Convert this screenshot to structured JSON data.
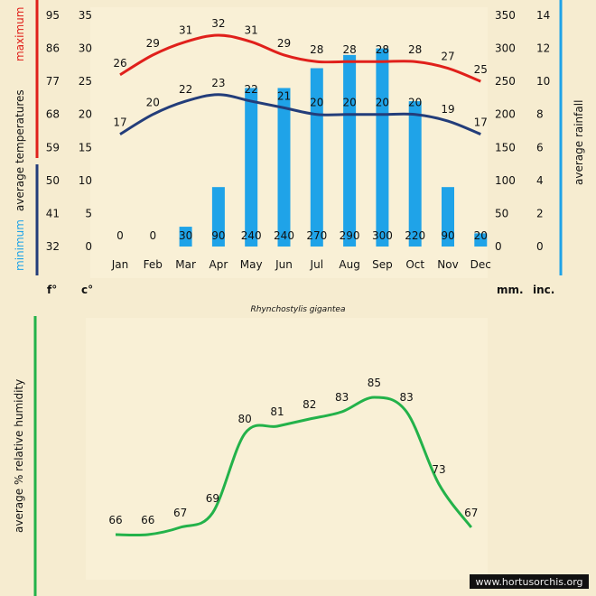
{
  "chart_data": [
    {
      "type": "bar",
      "categories": [
        "Jan",
        "Feb",
        "Mar",
        "Apr",
        "May",
        "Jun",
        "Jul",
        "Aug",
        "Sep",
        "Oct",
        "Nov",
        "Dec"
      ],
      "rainfall_mm": [
        0,
        0,
        30,
        90,
        240,
        240,
        270,
        290,
        300,
        220,
        90,
        20
      ],
      "rainfall_max_series": [
        0,
        0,
        30,
        90,
        240,
        240,
        270,
        290,
        300,
        220,
        90,
        20
      ],
      "temp_max_c": [
        26,
        29,
        31,
        32,
        31,
        29,
        28,
        28,
        28,
        28,
        27,
        25
      ],
      "temp_min_c": [
        17,
        20,
        22,
        23,
        22,
        21,
        20,
        20,
        20,
        20,
        19,
        17
      ],
      "y_left_f_ticks": [
        "32",
        "41",
        "50",
        "59",
        "68",
        "77",
        "86",
        "95"
      ],
      "y_left_c_ticks": [
        "0",
        "5",
        "10",
        "15",
        "20",
        "25",
        "30",
        "35"
      ],
      "y_right_mm_ticks": [
        "0",
        "50",
        "100",
        "150",
        "200",
        "250",
        "300",
        "350"
      ],
      "y_right_inc_ticks": [
        "0",
        "2",
        "4",
        "6",
        "8",
        "10",
        "12",
        "14"
      ],
      "ylim_c": [
        0,
        35
      ],
      "ylim_mm": [
        0,
        350
      ],
      "unit_f": "f°",
      "unit_c": "c°",
      "unit_mm": "mm.",
      "unit_inc": "inc.",
      "ylabel_left_min": "minimum",
      "ylabel_left_avg": "average temperatures",
      "ylabel_left_max": "maximum",
      "ylabel_right": "average rainfall",
      "subtitle": "Rhynchostylis gigantea",
      "colors": {
        "max": "#e0201b",
        "min": "#233d7a",
        "bar": "#1fa3e8",
        "axis_rain": "#1fa3e8",
        "humidity": "#23b24a"
      }
    },
    {
      "type": "line",
      "categories": [
        "Jan",
        "Feb",
        "Mar",
        "Apr",
        "May",
        "Jun",
        "Jul",
        "Aug",
        "Sep",
        "Oct",
        "Nov",
        "Dec"
      ],
      "humidity": [
        66,
        66,
        67,
        69,
        80,
        81,
        82,
        83,
        85,
        83,
        73,
        67
      ],
      "ylabel": "average %  relative humidity"
    }
  ],
  "watermark": "www.hortusorchis.org"
}
